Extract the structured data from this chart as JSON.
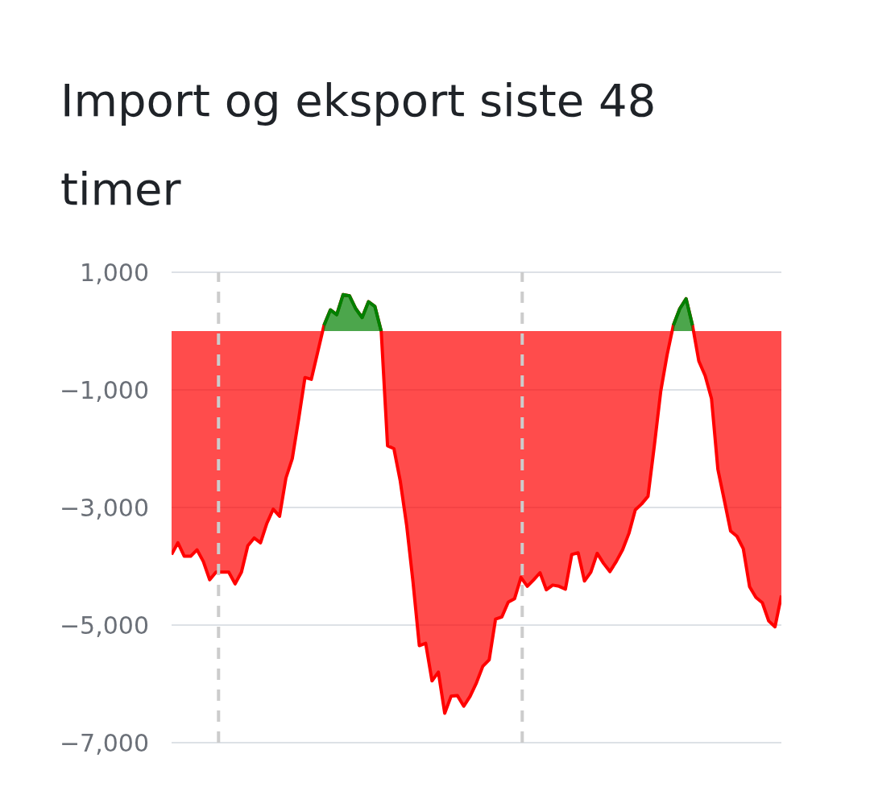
{
  "chart_data": {
    "type": "area",
    "title": "Import og eksport siste 48 timer",
    "categories": [
      null,
      null,
      null,
      null,
      null,
      null,
      null,
      null,
      null,
      null,
      null,
      null,
      null,
      null,
      null,
      null,
      null,
      null,
      null,
      null,
      null,
      null,
      null,
      null,
      null,
      null,
      null,
      null,
      null,
      null,
      null,
      null,
      null,
      null,
      null,
      null,
      null,
      null,
      null,
      null,
      null,
      null,
      null,
      null,
      null,
      null,
      null,
      null,
      null,
      null,
      null,
      null,
      null,
      null,
      null,
      null,
      null,
      null,
      null,
      null,
      null,
      null,
      null,
      null,
      null,
      null,
      null,
      null,
      null,
      null,
      null,
      null,
      null,
      null,
      null,
      null,
      null,
      null,
      null,
      null,
      null,
      null,
      null,
      null,
      null,
      null,
      null,
      null,
      null,
      null,
      null,
      null,
      null,
      null,
      null,
      null,
      null
    ],
    "series": [
      {
        "color": "#ff0000",
        "values": [
          -3800,
          -3600,
          -3830,
          -3830,
          -3720,
          -3920,
          -4230,
          -4100,
          -4100,
          -4100,
          -4300,
          -4100,
          -3650,
          -3520,
          -3600,
          -3270,
          -3030,
          -3150,
          -2500,
          -2170,
          -1500,
          -790,
          -820,
          -360,
          100,
          360,
          280,
          620,
          600,
          380,
          230,
          500,
          420,
          0,
          -1950,
          -2000,
          -2550,
          -3300,
          -4260,
          -5350,
          -5310,
          -5950,
          -5800,
          -6500,
          -6210,
          -6200,
          -6380,
          -6210,
          -5980,
          -5700,
          -5590,
          -4900,
          -4860,
          -4610,
          -4550,
          -4190,
          -4340,
          -4230,
          -4110,
          -4400,
          -4320,
          -4340,
          -4390,
          -3800,
          -3770,
          -4250,
          -4100,
          -3780,
          -3950,
          -4090,
          -3920,
          -3720,
          -3440,
          -3040,
          -2940,
          -2810,
          -1950,
          -1030,
          -410,
          100,
          380,
          550,
          100,
          -510,
          -760,
          -1150,
          -2350,
          -2870,
          -3400,
          -3490,
          -3700,
          -4350,
          -4530,
          -4620,
          -4930,
          -5030,
          -4500
        ]
      },
      {
        "color": "#008000",
        "values": [
          null,
          null,
          null,
          null,
          null,
          null,
          null,
          null,
          null,
          null,
          null,
          null,
          null,
          null,
          null,
          null,
          null,
          null,
          null,
          null,
          null,
          null,
          null,
          null,
          100,
          360,
          280,
          620,
          600,
          380,
          230,
          500,
          420,
          0,
          null,
          null,
          null,
          null,
          null,
          null,
          null,
          null,
          null,
          null,
          null,
          null,
          null,
          null,
          null,
          null,
          null,
          null,
          null,
          null,
          null,
          null,
          null,
          null,
          null,
          null,
          null,
          null,
          null,
          null,
          null,
          null,
          null,
          null,
          null,
          null,
          null,
          null,
          null,
          null,
          null,
          null,
          null,
          null,
          null,
          100,
          380,
          550,
          100,
          null,
          null,
          null,
          null,
          null,
          null,
          null,
          null,
          null,
          null,
          null,
          null,
          null,
          null
        ]
      }
    ],
    "ylim": [
      -7000,
      1000
    ],
    "yticks": [
      {
        "value": 1000,
        "label": "1,000"
      },
      {
        "value": -1000,
        "label": "−1,000"
      },
      {
        "value": -3000,
        "label": "−3,000"
      },
      {
        "value": -5000,
        "label": "−5,000"
      },
      {
        "value": -7000,
        "label": "−7,000"
      }
    ],
    "grid": "y",
    "tick_labels": "y"
  }
}
